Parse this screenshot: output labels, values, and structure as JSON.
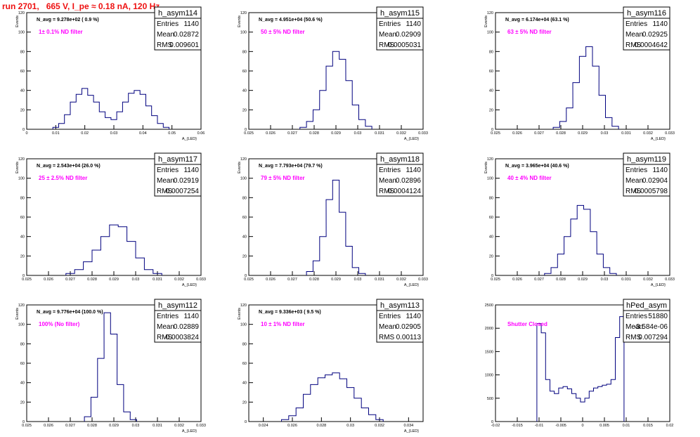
{
  "page": {
    "title": "run 2701,   665 V, I_pe ≈ 0.18 nA, 120 Hz"
  },
  "colors": {
    "title": "#ee1111",
    "annotation": "#ff00ff",
    "histogram": "#00007f",
    "frame": "#000000"
  },
  "chart_data": [
    {
      "type": "histogram",
      "name": "h_asym114",
      "ylabel": "Events",
      "xlabel": "A_{LED}",
      "xlim": [
        0,
        0.06
      ],
      "ylim": [
        0,
        120
      ],
      "xticks": [
        "0",
        "0.01",
        "0.02",
        "0.03",
        "0.04",
        "0.05",
        "0.06"
      ],
      "yticks": [
        "0",
        "20",
        "40",
        "60",
        "80",
        "100",
        "120"
      ],
      "stats": [
        [
          "Entries",
          "1140"
        ],
        [
          "Mean",
          "0.02872"
        ],
        [
          "RMS",
          "0.009601"
        ]
      ],
      "navg": "N_avg = 9.278e+02 ( 0.9 %)",
      "note": "1± 0.1% ND filter",
      "bins": [
        [
          0.01,
          2
        ],
        [
          0.012,
          6
        ],
        [
          0.014,
          15
        ],
        [
          0.016,
          28
        ],
        [
          0.018,
          36
        ],
        [
          0.02,
          42
        ],
        [
          0.022,
          35
        ],
        [
          0.024,
          28
        ],
        [
          0.026,
          18
        ],
        [
          0.028,
          12
        ],
        [
          0.03,
          10
        ],
        [
          0.032,
          18
        ],
        [
          0.034,
          28
        ],
        [
          0.036,
          37
        ],
        [
          0.038,
          40
        ],
        [
          0.04,
          36
        ],
        [
          0.042,
          24
        ],
        [
          0.044,
          14
        ],
        [
          0.046,
          6
        ],
        [
          0.048,
          2
        ]
      ]
    },
    {
      "type": "histogram",
      "name": "h_asym115",
      "ylabel": "Events",
      "xlabel": "A_{LED}",
      "xlim": [
        0.025,
        0.033
      ],
      "ylim": [
        0,
        120
      ],
      "xticks": [
        "0.025",
        "0.026",
        "0.027",
        "0.028",
        "0.029",
        "0.03",
        "0.031",
        "0.032",
        "0.033"
      ],
      "yticks": [
        "0",
        "20",
        "40",
        "60",
        "80",
        "100",
        "120"
      ],
      "stats": [
        [
          "Entries",
          "1140"
        ],
        [
          "Mean",
          "0.02909"
        ],
        [
          "RMS",
          "0.0005031"
        ]
      ],
      "navg": "N_avg = 4.951e+04 (50.6 %)",
      "note": "50 ± 5% ND filter",
      "bins": [
        [
          0.0275,
          2
        ],
        [
          0.0278,
          8
        ],
        [
          0.0281,
          20
        ],
        [
          0.0284,
          40
        ],
        [
          0.0287,
          65
        ],
        [
          0.029,
          80
        ],
        [
          0.0293,
          72
        ],
        [
          0.0296,
          50
        ],
        [
          0.0299,
          25
        ],
        [
          0.0302,
          10
        ],
        [
          0.0305,
          3
        ]
      ]
    },
    {
      "type": "histogram",
      "name": "h_asym116",
      "ylabel": "Events",
      "xlabel": "A_{LED}",
      "xlim": [
        0.025,
        0.033
      ],
      "ylim": [
        0,
        120
      ],
      "xticks": [
        "0.025",
        "0.026",
        "0.027",
        "0.028",
        "0.029",
        "0.03",
        "0.031",
        "0.032",
        "0.033"
      ],
      "yticks": [
        "0",
        "20",
        "40",
        "60",
        "80",
        "100",
        "120"
      ],
      "stats": [
        [
          "Entries",
          "1140"
        ],
        [
          "Mean",
          "0.02925"
        ],
        [
          "RMS",
          "0.0004642"
        ]
      ],
      "navg": "N_avg = 6.174e+04 (63.1 %)",
      "note": "63 ± 5% ND filter",
      "bins": [
        [
          0.0278,
          2
        ],
        [
          0.0281,
          8
        ],
        [
          0.0284,
          22
        ],
        [
          0.0287,
          48
        ],
        [
          0.029,
          75
        ],
        [
          0.0293,
          85
        ],
        [
          0.0296,
          65
        ],
        [
          0.0299,
          35
        ],
        [
          0.0302,
          12
        ],
        [
          0.0305,
          3
        ]
      ]
    },
    {
      "type": "histogram",
      "name": "h_asym117",
      "ylabel": "Events",
      "xlabel": "A_{LED}",
      "xlim": [
        0.025,
        0.033
      ],
      "ylim": [
        0,
        120
      ],
      "xticks": [
        "0.025",
        "0.026",
        "0.027",
        "0.028",
        "0.029",
        "0.03",
        "0.031",
        "0.032",
        "0.033"
      ],
      "yticks": [
        "0",
        "20",
        "40",
        "60",
        "80",
        "100",
        "120"
      ],
      "stats": [
        [
          "Entries",
          "1140"
        ],
        [
          "Mean",
          "0.02919"
        ],
        [
          "RMS",
          "0.0007254"
        ]
      ],
      "navg": "N_avg = 2.543e+04 (26.0 %)",
      "note": "25 ± 2.5% ND filter",
      "bins": [
        [
          0.027,
          2
        ],
        [
          0.0274,
          6
        ],
        [
          0.0278,
          14
        ],
        [
          0.0282,
          26
        ],
        [
          0.0286,
          40
        ],
        [
          0.029,
          52
        ],
        [
          0.0294,
          50
        ],
        [
          0.0298,
          35
        ],
        [
          0.0302,
          18
        ],
        [
          0.0306,
          6
        ],
        [
          0.031,
          2
        ]
      ]
    },
    {
      "type": "histogram",
      "name": "h_asym118",
      "ylabel": "Events",
      "xlabel": "A_{LED}",
      "xlim": [
        0.025,
        0.033
      ],
      "ylim": [
        0,
        120
      ],
      "xticks": [
        "0.025",
        "0.026",
        "0.027",
        "0.028",
        "0.029",
        "0.03",
        "0.031",
        "0.032",
        "0.033"
      ],
      "yticks": [
        "0",
        "20",
        "40",
        "60",
        "80",
        "100",
        "120"
      ],
      "stats": [
        [
          "Entries",
          "1140"
        ],
        [
          "Mean",
          "0.02896"
        ],
        [
          "RMS",
          "0.0004124"
        ]
      ],
      "navg": "N_avg = 7.793e+04 (79.7 %)",
      "note": "79 ± 5% ND filter",
      "bins": [
        [
          0.0278,
          4
        ],
        [
          0.0281,
          15
        ],
        [
          0.0284,
          40
        ],
        [
          0.0287,
          78
        ],
        [
          0.029,
          98
        ],
        [
          0.0293,
          65
        ],
        [
          0.0296,
          30
        ],
        [
          0.0299,
          8
        ],
        [
          0.0302,
          2
        ]
      ]
    },
    {
      "type": "histogram",
      "name": "h_asym119",
      "ylabel": "Events",
      "xlabel": "A_{LED}",
      "xlim": [
        0.025,
        0.033
      ],
      "ylim": [
        0,
        120
      ],
      "xticks": [
        "0.025",
        "0.026",
        "0.027",
        "0.028",
        "0.029",
        "0.03",
        "0.031",
        "0.032",
        "0.033"
      ],
      "yticks": [
        "0",
        "20",
        "40",
        "60",
        "80",
        "100",
        "120"
      ],
      "stats": [
        [
          "Entries",
          "1140"
        ],
        [
          "Mean",
          "0.02904"
        ],
        [
          "RMS",
          "0.0005798"
        ]
      ],
      "navg": "N_avg = 3.965e+04 (40.6 %)",
      "note": "40 ± 4% ND filter",
      "bins": [
        [
          0.0274,
          2
        ],
        [
          0.0277,
          8
        ],
        [
          0.028,
          22
        ],
        [
          0.0283,
          40
        ],
        [
          0.0286,
          58
        ],
        [
          0.0289,
          72
        ],
        [
          0.0292,
          68
        ],
        [
          0.0295,
          45
        ],
        [
          0.0298,
          22
        ],
        [
          0.0301,
          8
        ],
        [
          0.0304,
          2
        ]
      ]
    },
    {
      "type": "histogram",
      "name": "h_asym112",
      "ylabel": "Events",
      "xlabel": "A_{LED}",
      "xlim": [
        0.025,
        0.033
      ],
      "ylim": [
        0,
        120
      ],
      "xticks": [
        "0.025",
        "0.026",
        "0.027",
        "0.028",
        "0.029",
        "0.03",
        "0.031",
        "0.032",
        "0.033"
      ],
      "yticks": [
        "0",
        "20",
        "40",
        "60",
        "80",
        "100",
        "120"
      ],
      "stats": [
        [
          "Entries",
          "1140"
        ],
        [
          "Mean",
          "0.02889"
        ],
        [
          "RMS",
          "0.0003824"
        ]
      ],
      "navg": "N_avg = 9.776e+04 (100.0 %)",
      "note": "100% (No filter)",
      "bins": [
        [
          0.0278,
          5
        ],
        [
          0.0281,
          25
        ],
        [
          0.0284,
          65
        ],
        [
          0.0287,
          112
        ],
        [
          0.029,
          90
        ],
        [
          0.0293,
          38
        ],
        [
          0.0296,
          10
        ],
        [
          0.0299,
          2
        ]
      ]
    },
    {
      "type": "histogram",
      "name": "h_asym113",
      "ylabel": "Events",
      "xlabel": "A_{LED}",
      "xlim": [
        0.023,
        0.035
      ],
      "ylim": [
        0,
        120
      ],
      "xticks": [
        "0.024",
        "0.026",
        "0.028",
        "0.03",
        "0.032",
        "0.034"
      ],
      "yticks": [
        "0",
        "20",
        "40",
        "60",
        "80",
        "100",
        "120"
      ],
      "stats": [
        [
          "Entries",
          "1140"
        ],
        [
          "Mean",
          "0.02905"
        ],
        [
          "RMS",
          "0.00113"
        ]
      ],
      "navg": "N_avg = 9.336e+03 ( 9.5 %)",
      "note": "10 ± 1% ND filter",
      "bins": [
        [
          0.0255,
          2
        ],
        [
          0.026,
          6
        ],
        [
          0.0265,
          14
        ],
        [
          0.027,
          28
        ],
        [
          0.0275,
          38
        ],
        [
          0.028,
          45
        ],
        [
          0.0285,
          48
        ],
        [
          0.029,
          50
        ],
        [
          0.0295,
          44
        ],
        [
          0.03,
          35
        ],
        [
          0.0305,
          24
        ],
        [
          0.031,
          14
        ],
        [
          0.0315,
          7
        ],
        [
          0.032,
          2
        ]
      ]
    },
    {
      "type": "histogram",
      "name": "hPed_asym",
      "ylabel": "",
      "xlabel": "",
      "xlim": [
        -0.02,
        0.02
      ],
      "ylim": [
        0,
        2500
      ],
      "xticks": [
        "-0.02",
        "-0.015",
        "-0.01",
        "-0.005",
        "0",
        "0.005",
        "0.01",
        "0.015",
        "0.02"
      ],
      "yticks": [
        "0",
        "500",
        "1000",
        "1500",
        "2000",
        "2500"
      ],
      "stats": [
        [
          "Entries",
          "51880"
        ],
        [
          "Mean",
          "-3.584e-06"
        ],
        [
          "RMS",
          "0.007294"
        ]
      ],
      "navg": "",
      "note": "Shutter Closed",
      "bins": [
        [
          -0.01,
          2100
        ],
        [
          -0.009,
          1900
        ],
        [
          -0.008,
          900
        ],
        [
          -0.007,
          650
        ],
        [
          -0.006,
          600
        ],
        [
          -0.005,
          720
        ],
        [
          -0.004,
          750
        ],
        [
          -0.003,
          700
        ],
        [
          -0.002,
          600
        ],
        [
          -0.001,
          500
        ],
        [
          0.0,
          420
        ],
        [
          0.001,
          500
        ],
        [
          0.002,
          650
        ],
        [
          0.003,
          720
        ],
        [
          0.004,
          750
        ],
        [
          0.005,
          780
        ],
        [
          0.006,
          800
        ],
        [
          0.007,
          900
        ],
        [
          0.008,
          1800
        ],
        [
          0.009,
          2250
        ]
      ]
    }
  ]
}
